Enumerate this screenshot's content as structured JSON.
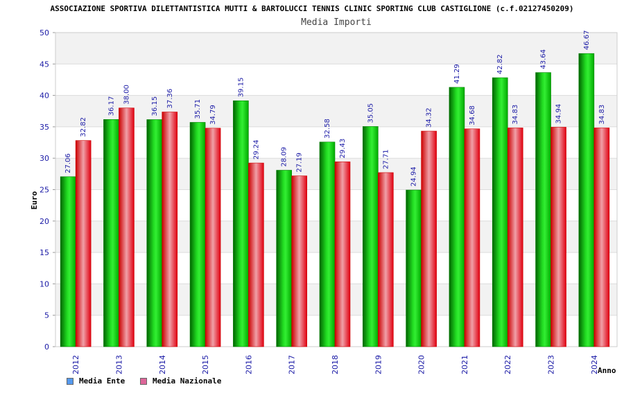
{
  "chart_data": {
    "type": "bar",
    "title": "ASSOCIAZIONE SPORTIVA DILETTANTISTICA MUTTI & BARTOLUCCI TENNIS CLINIC SPORTING CLUB CASTIGLIONE (c.f.02127450209)",
    "subtitle": "Media Importi",
    "xlabel": "Anno",
    "ylabel": "Euro",
    "ylim": [
      0,
      50
    ],
    "yticks": [
      0,
      5,
      10,
      15,
      20,
      25,
      30,
      35,
      40,
      45,
      50
    ],
    "categories": [
      "2012",
      "2013",
      "2014",
      "2015",
      "2016",
      "2017",
      "2018",
      "2019",
      "2020",
      "2021",
      "2022",
      "2023",
      "2024"
    ],
    "series": [
      {
        "name": "Media Ente",
        "color": "#00b000",
        "values": [
          27.06,
          36.17,
          36.15,
          35.71,
          39.15,
          28.09,
          32.58,
          35.05,
          24.94,
          41.29,
          42.82,
          43.64,
          46.67
        ],
        "labels": [
          "27.06",
          "36.17",
          "36.15",
          "35.71",
          "39.15",
          "28.09",
          "32.58",
          "35.05",
          "24.94",
          "41.29",
          "42.82",
          "43.64",
          "46.67"
        ]
      },
      {
        "name": "Media Nazionale",
        "color": "#ee1122",
        "values": [
          32.82,
          38.0,
          37.36,
          34.79,
          29.24,
          27.19,
          29.43,
          27.71,
          34.32,
          34.68,
          34.83,
          34.94,
          34.83
        ],
        "labels": [
          "32.82",
          "38.00",
          "37.36",
          "34.79",
          "29.24",
          "27.19",
          "29.43",
          "27.71",
          "34.32",
          "34.68",
          "34.83",
          "34.94",
          "34.83"
        ]
      }
    ],
    "legend": [
      {
        "name": "Media Ente",
        "color": "#5599ee"
      },
      {
        "name": "Media Nazionale",
        "color": "#dd6699"
      }
    ],
    "grid": true,
    "legend_position": "bottom-left"
  }
}
